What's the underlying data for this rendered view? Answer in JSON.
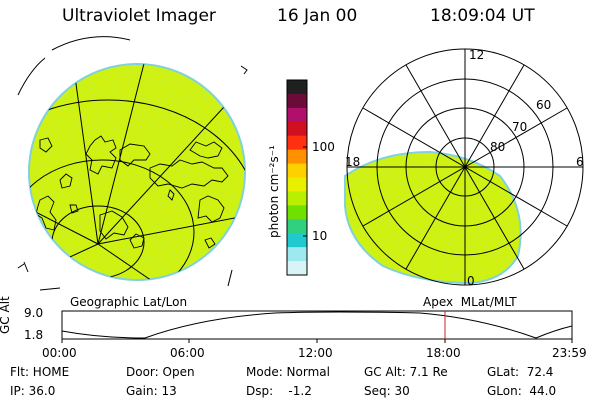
{
  "header": {
    "instrument": "Ultraviolet Imager",
    "date": "16 Jan 00",
    "time": "18:09:04 UT"
  },
  "colorbar": {
    "unit_label": "photon cm⁻²s⁻¹",
    "ticks": [
      "100",
      "10"
    ],
    "colors": [
      "#202020",
      "#6a0b3a",
      "#b0106a",
      "#d01020",
      "#ff3010",
      "#ff9000",
      "#ffd000",
      "#e8f000",
      "#b8f000",
      "#70e000",
      "#30d080",
      "#20c8d0",
      "#9ee8f0",
      "#d8f4f6"
    ]
  },
  "geo_panel": {
    "label": "Geographic Lat/Lon",
    "fill_color": "#d2f20e"
  },
  "polar_panel": {
    "label": "Apex  MLat/MLT",
    "lat_labels": [
      "60",
      "70",
      "80"
    ],
    "mlt_labels": {
      "top": "12",
      "left": "18",
      "right": "6",
      "bottom": "0"
    },
    "fill_color": "#d2f20e"
  },
  "altitude_plot": {
    "axis_label": "GC Alt",
    "y_ticks": [
      "9.0",
      "1.8"
    ],
    "x_ticks": [
      "00:00",
      "06:00",
      "12:00",
      "18:00",
      "23:59"
    ],
    "marker_color": "#d02020"
  },
  "footer": {
    "row1": [
      {
        "key": "flt",
        "text": "Flt: HOME"
      },
      {
        "key": "door",
        "text": "Door: Open"
      },
      {
        "key": "mode",
        "text": "Mode: Normal"
      },
      {
        "key": "gcalt",
        "text": "GC Alt: 7.1 Re"
      },
      {
        "key": "glat",
        "text": "GLat:  72.4"
      }
    ],
    "row2": [
      {
        "key": "ip",
        "text": "IP: 36.0"
      },
      {
        "key": "gain",
        "text": "Gain: 13"
      },
      {
        "key": "dsp",
        "text": "Dsp:    -1.2"
      },
      {
        "key": "seq",
        "text": "Seq: 30"
      },
      {
        "key": "glon",
        "text": "GLon:  44.0"
      }
    ]
  }
}
